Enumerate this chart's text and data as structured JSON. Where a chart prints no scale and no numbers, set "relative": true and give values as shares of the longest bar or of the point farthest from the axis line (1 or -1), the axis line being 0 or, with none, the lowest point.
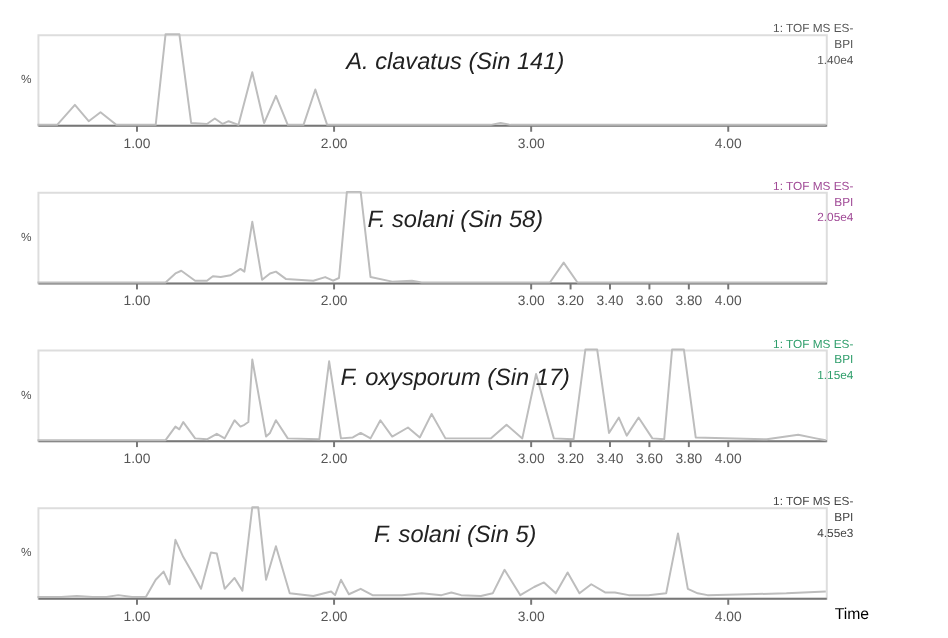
{
  "chart_data": [
    {
      "type": "line",
      "relative": true,
      "ylabel": "%",
      "color": "#bdbdbd",
      "grid": false,
      "xlim": [
        0.5,
        4.5
      ],
      "xticks": [
        {
          "value": 1,
          "label": "1.00"
        },
        {
          "value": 2,
          "label": "2.00"
        },
        {
          "value": 3,
          "label": "3.00"
        },
        {
          "value": 4,
          "label": "4.00"
        }
      ],
      "annotations": [
        "A. clavatus (Sin 141)",
        "1: TOF MS ES-\nBPI\n1.40e4"
      ],
      "x": [
        0.5,
        0.6,
        0.69,
        0.76,
        0.82,
        0.9,
        1.1,
        1.15,
        1.22,
        1.28,
        1.36,
        1.4,
        1.44,
        1.47,
        1.52,
        1.59,
        1.65,
        1.71,
        1.77,
        1.85,
        1.91,
        1.97,
        2.1,
        2.8,
        2.85,
        2.9,
        4.5
      ],
      "values": [
        0,
        0,
        0.22,
        0.04,
        0.14,
        0,
        0,
        1,
        1,
        0.02,
        0.01,
        0.07,
        0.01,
        0.04,
        0,
        0.58,
        0.02,
        0.32,
        0,
        0,
        0.39,
        0,
        0,
        0,
        0.02,
        0,
        0
      ]
    },
    {
      "type": "line",
      "relative": true,
      "ylabel": "%",
      "color": "#bdbdbd",
      "grid": false,
      "xlim": [
        0.5,
        4.5
      ],
      "xticks": [
        {
          "value": 1,
          "label": "1.00"
        },
        {
          "value": 2,
          "label": "2.00"
        },
        {
          "value": 3,
          "label": "3.00"
        },
        {
          "value": 3.2,
          "label": "3.20"
        },
        {
          "value": 3.4,
          "label": "3.40"
        },
        {
          "value": 3.6,
          "label": "3.60"
        },
        {
          "value": 3.8,
          "label": "3.80"
        },
        {
          "value": 4,
          "label": "4.00"
        }
      ],
      "annotations": [
        "F. solani (Sin 58)",
        "1: TOF MS ES-\nBPI\n2.05e4"
      ],
      "x": [
        0.5,
        1.15,
        1.2,
        1.23,
        1.3,
        1.36,
        1.39,
        1.43,
        1.48,
        1.53,
        1.55,
        1.59,
        1.64,
        1.68,
        1.71,
        1.76,
        1.9,
        1.96,
        2.0,
        2.03,
        2.07,
        2.14,
        2.19,
        2.3,
        2.4,
        2.45,
        3.1,
        3.17,
        3.24,
        4.5
      ],
      "values": [
        0,
        0,
        0.1,
        0.13,
        0.02,
        0.02,
        0.07,
        0.06,
        0.08,
        0.15,
        0.12,
        0.67,
        0.03,
        0.1,
        0.12,
        0.04,
        0.02,
        0.06,
        0.02,
        0.05,
        1,
        1,
        0.06,
        0.01,
        0.02,
        0,
        0,
        0.22,
        0,
        0
      ]
    },
    {
      "type": "line",
      "relative": true,
      "ylabel": "%",
      "color": "#bdbdbd",
      "grid": false,
      "xlim": [
        0.5,
        4.5
      ],
      "xticks": [
        {
          "value": 1,
          "label": "1.00"
        },
        {
          "value": 2,
          "label": "2.00"
        },
        {
          "value": 3,
          "label": "3.00"
        },
        {
          "value": 3.2,
          "label": "3.20"
        },
        {
          "value": 3.4,
          "label": "3.40"
        },
        {
          "value": 3.6,
          "label": "3.60"
        },
        {
          "value": 3.8,
          "label": "3.80"
        },
        {
          "value": 4,
          "label": "4.00"
        }
      ],
      "annotations": [
        "F. oxysporum (Sin 17)",
        "1: TOF MS ES-\nBPI\n1.15e4"
      ],
      "x": [
        0.5,
        1.15,
        1.2,
        1.22,
        1.24,
        1.3,
        1.36,
        1.41,
        1.45,
        1.5,
        1.53,
        1.55,
        1.57,
        1.59,
        1.66,
        1.68,
        1.71,
        1.77,
        1.93,
        1.98,
        2.04,
        2.1,
        2.14,
        2.19,
        2.24,
        2.3,
        2.38,
        2.44,
        2.5,
        2.57,
        2.8,
        2.88,
        2.96,
        3.03,
        3.12,
        3.22,
        3.28,
        3.34,
        3.4,
        3.45,
        3.49,
        3.55,
        3.62,
        3.68,
        3.72,
        3.78,
        3.84,
        4.2,
        4.36,
        4.45,
        4.5
      ],
      "values": [
        0,
        0,
        0.15,
        0.12,
        0.2,
        0.02,
        0.01,
        0.07,
        0.02,
        0.22,
        0.15,
        0.17,
        0.2,
        0.89,
        0.04,
        0.08,
        0.22,
        0.02,
        0.01,
        0.87,
        0.02,
        0.03,
        0.08,
        0.02,
        0.22,
        0.04,
        0.14,
        0.03,
        0.29,
        0.02,
        0.02,
        0.17,
        0.02,
        0.73,
        0.02,
        0.01,
        1,
        1,
        0.08,
        0.25,
        0.05,
        0.25,
        0.02,
        0.01,
        1,
        1,
        0.03,
        0.01,
        0.06,
        0.02,
        0
      ]
    },
    {
      "type": "line",
      "relative": true,
      "ylabel": "%",
      "xlabel": "Time",
      "color": "#bdbdbd",
      "grid": false,
      "xlim": [
        0.5,
        4.5
      ],
      "xticks": [
        {
          "value": 1,
          "label": "1.00"
        },
        {
          "value": 2,
          "label": "2.00"
        },
        {
          "value": 3,
          "label": "3.00"
        },
        {
          "value": 4,
          "label": "4.00"
        }
      ],
      "annotations": [
        "F. solani (Sin 5)",
        "1: TOF MS ES-\nBPI\n4.55e3"
      ],
      "x": [
        0.5,
        0.62,
        0.7,
        0.78,
        0.85,
        0.91,
        0.98,
        1.05,
        1.1,
        1.14,
        1.17,
        1.2,
        1.24,
        1.28,
        1.33,
        1.38,
        1.41,
        1.45,
        1.5,
        1.54,
        1.59,
        1.62,
        1.66,
        1.71,
        1.78,
        1.9,
        1.99,
        2.01,
        2.04,
        2.08,
        2.14,
        2.2,
        2.35,
        2.45,
        2.55,
        2.6,
        2.65,
        2.75,
        2.81,
        2.87,
        2.95,
        3.02,
        3.07,
        3.13,
        3.19,
        3.25,
        3.31,
        3.38,
        3.43,
        3.5,
        3.6,
        3.69,
        3.75,
        3.8,
        3.85,
        3.9,
        4.1,
        4.3,
        4.5
      ],
      "values": [
        0.01,
        0.01,
        0.02,
        0.01,
        0.01,
        0.03,
        0.01,
        0.01,
        0.2,
        0.29,
        0.15,
        0.64,
        0.45,
        0.3,
        0.1,
        0.5,
        0.49,
        0.1,
        0.22,
        0.08,
        1,
        1,
        0.2,
        0.57,
        0.05,
        0.02,
        0.07,
        0.03,
        0.2,
        0.04,
        0.1,
        0.03,
        0.03,
        0.05,
        0.03,
        0.06,
        0.03,
        0.02,
        0.05,
        0.31,
        0.03,
        0.12,
        0.17,
        0.05,
        0.28,
        0.05,
        0.15,
        0.06,
        0.06,
        0.03,
        0.03,
        0.05,
        0.71,
        0.1,
        0.05,
        0.03,
        0.04,
        0.05,
        0.07
      ]
    }
  ]
}
